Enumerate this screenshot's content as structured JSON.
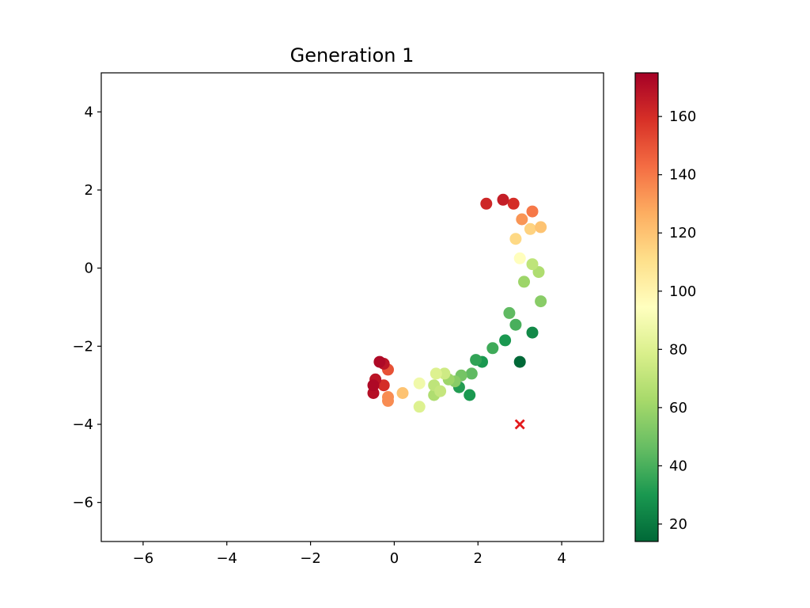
{
  "chart_data": {
    "type": "scatter",
    "title": "Generation 1",
    "xlabel": "",
    "ylabel": "",
    "xlim": [
      -7,
      5
    ],
    "ylim": [
      -7,
      5
    ],
    "xticks": [
      -6,
      -4,
      -2,
      0,
      2,
      4
    ],
    "yticks": [
      -6,
      -4,
      -2,
      0,
      2,
      4
    ],
    "xtick_labels": [
      "−6",
      "−4",
      "−2",
      "0",
      "2",
      "4"
    ],
    "ytick_labels": [
      "−6",
      "−4",
      "−2",
      "0",
      "2",
      "4"
    ],
    "grid": false,
    "colormap": "RdYlGn_r",
    "colorbar": {
      "range": [
        14,
        175
      ],
      "ticks": [
        20,
        40,
        60,
        80,
        100,
        120,
        140,
        160
      ],
      "tick_labels": [
        "20",
        "40",
        "60",
        "80",
        "100",
        "120",
        "140",
        "160"
      ]
    },
    "series": [
      {
        "points": [
          [
            2.6,
            1.75,
            165
          ],
          [
            2.85,
            1.65,
            160
          ],
          [
            2.2,
            1.65,
            162
          ],
          [
            3.3,
            1.45,
            140
          ],
          [
            3.05,
            1.25,
            133
          ],
          [
            3.5,
            1.05,
            120
          ],
          [
            3.25,
            1.0,
            115
          ],
          [
            2.9,
            0.75,
            113
          ],
          [
            3.0,
            0.25,
            95
          ],
          [
            3.3,
            0.1,
            70
          ],
          [
            3.45,
            -0.1,
            65
          ],
          [
            3.1,
            -0.35,
            60
          ],
          [
            3.5,
            -0.85,
            55
          ],
          [
            2.75,
            -1.15,
            45
          ],
          [
            2.9,
            -1.45,
            40
          ],
          [
            3.3,
            -1.65,
            25
          ],
          [
            2.65,
            -1.85,
            30
          ],
          [
            3.0,
            -2.4,
            14
          ],
          [
            2.35,
            -2.05,
            38
          ],
          [
            2.1,
            -2.4,
            30
          ],
          [
            1.95,
            -2.35,
            35
          ],
          [
            1.85,
            -2.7,
            45
          ],
          [
            1.6,
            -2.75,
            50
          ],
          [
            1.55,
            -3.05,
            32
          ],
          [
            1.8,
            -3.25,
            30
          ],
          [
            1.45,
            -2.9,
            55
          ],
          [
            1.3,
            -2.85,
            60
          ],
          [
            1.2,
            -2.7,
            75
          ],
          [
            1.0,
            -2.7,
            80
          ],
          [
            0.95,
            -3.0,
            70
          ],
          [
            0.95,
            -3.25,
            65
          ],
          [
            1.1,
            -3.15,
            72
          ],
          [
            0.6,
            -2.95,
            88
          ],
          [
            0.6,
            -3.55,
            80
          ],
          [
            0.2,
            -3.2,
            120
          ],
          [
            -0.15,
            -3.3,
            135
          ],
          [
            -0.15,
            -3.4,
            135
          ],
          [
            -0.5,
            -3.2,
            170
          ],
          [
            -0.5,
            -3.0,
            172
          ],
          [
            -0.45,
            -2.85,
            168
          ],
          [
            -0.25,
            -3.0,
            160
          ],
          [
            -0.35,
            -2.4,
            172
          ],
          [
            -0.25,
            -2.45,
            168
          ],
          [
            -0.15,
            -2.6,
            150
          ]
        ]
      }
    ],
    "target": {
      "x": 3,
      "y": -4,
      "marker": "x",
      "color": "#e41a1c"
    }
  }
}
